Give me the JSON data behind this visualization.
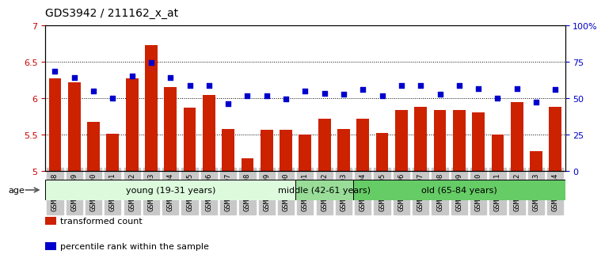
{
  "title": "GDS3942 / 211162_x_at",
  "samples": [
    "GSM812988",
    "GSM812989",
    "GSM812990",
    "GSM812991",
    "GSM812992",
    "GSM812993",
    "GSM812994",
    "GSM812995",
    "GSM812996",
    "GSM812997",
    "GSM812998",
    "GSM812999",
    "GSM813000",
    "GSM813001",
    "GSM813002",
    "GSM813003",
    "GSM813004",
    "GSM813005",
    "GSM813006",
    "GSM813007",
    "GSM813008",
    "GSM813009",
    "GSM813010",
    "GSM813011",
    "GSM813012",
    "GSM813013",
    "GSM813014"
  ],
  "bar_values": [
    6.27,
    6.22,
    5.67,
    5.51,
    6.27,
    6.73,
    6.15,
    5.87,
    6.04,
    5.58,
    5.17,
    5.57,
    5.57,
    5.5,
    5.72,
    5.58,
    5.72,
    5.52,
    5.84,
    5.88,
    5.84,
    5.84,
    5.8,
    5.5,
    5.95,
    5.27,
    5.88
  ],
  "dot_values": [
    6.37,
    6.28,
    6.1,
    6.0,
    6.3,
    6.49,
    6.28,
    6.18,
    6.18,
    5.92,
    6.03,
    6.03,
    5.99,
    6.1,
    6.07,
    6.05,
    6.12,
    6.03,
    6.17,
    6.17,
    6.05,
    6.17,
    6.13,
    6.0,
    6.13,
    5.95,
    6.12
  ],
  "ylim_left": [
    5.0,
    7.0
  ],
  "ylim_right": [
    0,
    100
  ],
  "yticks_left": [
    5.0,
    5.5,
    6.0,
    6.5,
    7.0
  ],
  "yticks_right": [
    0,
    25,
    50,
    75,
    100
  ],
  "ytick_labels_right": [
    "0",
    "25",
    "50",
    "75",
    "100%"
  ],
  "hlines": [
    5.5,
    6.0,
    6.5
  ],
  "bar_color": "#CC2200",
  "dot_color": "#0000CC",
  "bar_bottom": 5.0,
  "groups": [
    {
      "label": "young (19-31 years)",
      "start": 0,
      "end": 13,
      "color": "#DDFADD"
    },
    {
      "label": "middle (42-61 years)",
      "start": 13,
      "end": 16,
      "color": "#99DD99"
    },
    {
      "label": "old (65-84 years)",
      "start": 16,
      "end": 27,
      "color": "#66CC66"
    }
  ],
  "legend_items": [
    {
      "label": "transformed count",
      "color": "#CC2200"
    },
    {
      "label": "percentile rank within the sample",
      "color": "#0000CC"
    }
  ],
  "age_label": "age",
  "title_fontsize": 10,
  "xlabel_fontsize": 6.5,
  "ytick_fontsize": 8,
  "group_fontsize": 8,
  "legend_fontsize": 8,
  "xtick_bg": "#C8C8C8"
}
